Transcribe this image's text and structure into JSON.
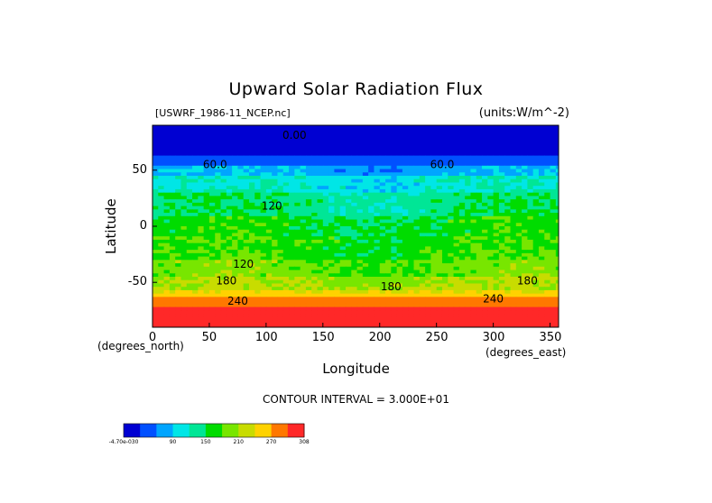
{
  "title": "Upward Solar Radiation Flux",
  "file_label": "[USWRF_1986-11_NCEP.nc]",
  "units_label": "(units:W/m^-2)",
  "contour_note": "CONTOUR INTERVAL = 3.000E+01",
  "chart_data": {
    "type": "heatmap",
    "title": "Upward Solar Radiation Flux",
    "xlabel": "Longitude",
    "ylabel": "Latitude",
    "x_unit": "(degrees_east)",
    "y_unit": "(degrees_north)",
    "xlim": [
      0,
      357.5
    ],
    "ylim": [
      -90,
      90
    ],
    "x_ticks": [
      0,
      50,
      100,
      150,
      200,
      250,
      300,
      350
    ],
    "y_ticks": [
      50,
      0,
      -50
    ],
    "contour_interval": 30,
    "colorbar_ticks": [
      "-4.70e-030",
      "90",
      "150",
      "210",
      "270",
      "308"
    ],
    "colors": [
      "#0000d2",
      "#0050ff",
      "#00a5ff",
      "#00e6e6",
      "#00e696",
      "#00dc00",
      "#78e600",
      "#c8dc00",
      "#ffd200",
      "#ff7800",
      "#ff2828",
      "#f0a0a0"
    ],
    "contour_labels": [
      {
        "text": "0.00",
        "lon": 125,
        "lat": 78
      },
      {
        "text": "60.0",
        "lon": 55,
        "lat": 52
      },
      {
        "text": "60.0",
        "lon": 255,
        "lat": 52
      },
      {
        "text": "120",
        "lon": 105,
        "lat": 15
      },
      {
        "text": "120",
        "lon": 80,
        "lat": -37
      },
      {
        "text": "180",
        "lon": 65,
        "lat": -52
      },
      {
        "text": "180",
        "lon": 210,
        "lat": -57
      },
      {
        "text": "180",
        "lon": 330,
        "lat": -52
      },
      {
        "text": "240",
        "lon": 75,
        "lat": -70
      },
      {
        "text": "240",
        "lon": 300,
        "lat": -68
      }
    ],
    "zonal_bands": [
      {
        "lat_top": 90,
        "lat_bottom": 82,
        "value": 0
      },
      {
        "lat_top": 82,
        "lat_bottom": 62,
        "value": 20
      },
      {
        "lat_top": 62,
        "lat_bottom": 54,
        "value": 45
      },
      {
        "lat_top": 54,
        "lat_bottom": 45,
        "value": 75
      },
      {
        "lat_top": 45,
        "lat_bottom": 30,
        "value": 105
      },
      {
        "lat_top": 30,
        "lat_bottom": 10,
        "value": 130
      },
      {
        "lat_top": 10,
        "lat_bottom": -10,
        "value": 150
      },
      {
        "lat_top": -10,
        "lat_bottom": -30,
        "value": 160
      },
      {
        "lat_top": -30,
        "lat_bottom": -45,
        "value": 175
      },
      {
        "lat_top": -45,
        "lat_bottom": -58,
        "value": 195
      },
      {
        "lat_top": -58,
        "lat_bottom": -64,
        "value": 225
      },
      {
        "lat_top": -64,
        "lat_bottom": -72,
        "value": 255
      },
      {
        "lat_top": -72,
        "lat_bottom": -90,
        "value": 290
      }
    ]
  }
}
